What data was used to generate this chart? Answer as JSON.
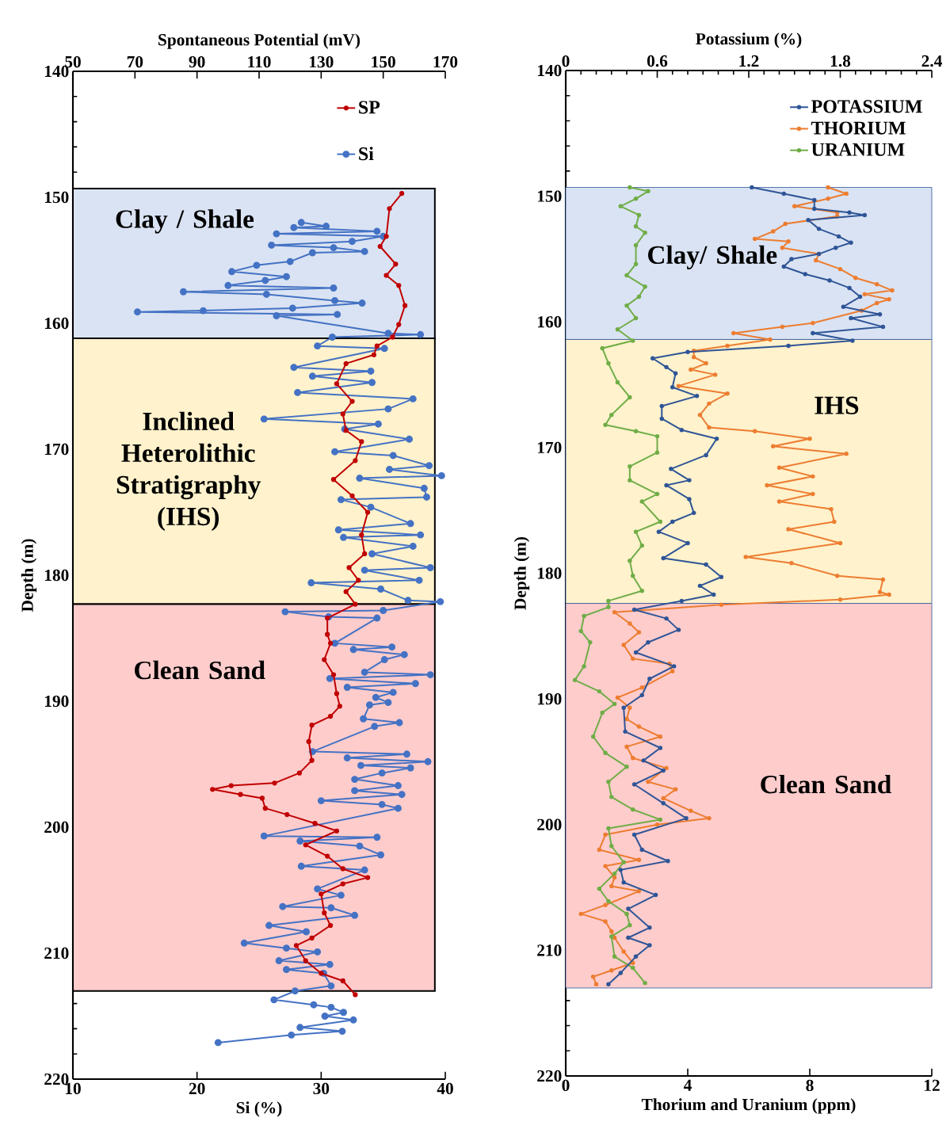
{
  "chart_data": [
    {
      "type": "line",
      "orientation": "horizontal",
      "xlabel": "Si (%)",
      "x2label": "Spontaneous Potential (mV)",
      "ylabel": "Depth (m)",
      "xlim": [
        10,
        40
      ],
      "xticks": [
        10,
        20,
        30,
        40
      ],
      "x2lim": [
        50,
        170
      ],
      "x2ticks": [
        50,
        70,
        90,
        110,
        130,
        150,
        170
      ],
      "ylim": [
        220,
        140
      ],
      "yticks": [
        140,
        150,
        160,
        170,
        180,
        190,
        200,
        210,
        220
      ],
      "marker": "circle",
      "legend": "top right",
      "bands": [
        {
          "axis": "y",
          "from": 149.3,
          "to": 161.2,
          "label": "Clay / Shale",
          "color": "#dae3f3"
        },
        {
          "axis": "y",
          "from": 161.2,
          "to": 182.3,
          "label": "Inclined Heterolithic Stratigraphy (IHS)",
          "color": "#fff2cc"
        },
        {
          "axis": "y",
          "from": 182.3,
          "to": 213.0,
          "label": "Clean Sand",
          "color": "#ffcccc"
        }
      ],
      "series": [
        {
          "name": "SP",
          "color": "#c00000",
          "axis": "x2",
          "x": [
            149.7,
            150.9,
            153.1,
            153.9,
            155.3,
            156.2,
            157.0,
            158.6,
            160.1,
            161.1,
            161.8,
            162.5,
            163.2,
            164.8,
            166.2,
            167.2,
            168.5,
            169.4,
            170.9,
            172.4,
            173.7,
            175.0,
            176.8,
            178.3,
            179.4,
            180.4,
            181.3,
            182.3,
            183.4,
            184.7,
            185.4,
            186.7,
            187.9,
            189.4,
            190.4,
            191.2,
            191.9,
            193.2,
            194.7,
            195.7,
            196.5,
            196.7,
            197.0,
            197.4,
            197.7,
            198.5,
            199.0,
            199.7,
            200.3,
            201.4,
            202.3,
            203.3,
            204.0,
            204.5,
            205.3,
            206.8,
            207.8,
            208.8,
            209.4,
            210.6,
            211.6,
            212.2,
            213.3
          ],
          "values": [
            156,
            152,
            151,
            149,
            154,
            151,
            155,
            157,
            155,
            153,
            148,
            147,
            138,
            135,
            140,
            137,
            138,
            143,
            141,
            134,
            140,
            145,
            143,
            144,
            139,
            142,
            138,
            141,
            132,
            132,
            133,
            131,
            134,
            135,
            136,
            133,
            127,
            126,
            127,
            123,
            115,
            101,
            95,
            104,
            111,
            112,
            119,
            128,
            135,
            125,
            132,
            137,
            145,
            137,
            130,
            131,
            133,
            127,
            122,
            125,
            130,
            137,
            141
          ]
        },
        {
          "name": "Si",
          "color": "#4472c4",
          "x": [
            152.0,
            152.3,
            152.4,
            152.7,
            152.9,
            153.1,
            153.5,
            153.8,
            154.0,
            154.3,
            154.4,
            155.1,
            155.4,
            155.9,
            156.3,
            156.6,
            157.0,
            157.2,
            157.5,
            157.7,
            158.2,
            158.4,
            158.8,
            159.0,
            159.1,
            159.3,
            159.4,
            160.8,
            160.9,
            161.1,
            161.8,
            162.0,
            163.5,
            163.8,
            164.2,
            164.7,
            165.5,
            166.0,
            166.8,
            167.6,
            168.0,
            168.4,
            169.2,
            170.2,
            170.5,
            171.3,
            171.6,
            172.1,
            172.3,
            173.1,
            173.8,
            174.0,
            174.6,
            175.9,
            176.4,
            176.8,
            177.0,
            177.7,
            178.3,
            179.4,
            179.6,
            180.4,
            180.6,
            181.1,
            182.0,
            182.1,
            182.8,
            182.9,
            183.3,
            183.4,
            185.4,
            185.7,
            185.9,
            186.3,
            186.7,
            187.7,
            187.9,
            188.2,
            188.6,
            188.9,
            189.3,
            189.7,
            190.1,
            190.3,
            191.4,
            191.7,
            192.0,
            194.0,
            194.2,
            194.5,
            194.8,
            195.1,
            195.3,
            195.7,
            196.2,
            196.7,
            197.1,
            197.4,
            197.9,
            198.2,
            198.5,
            200.7,
            200.8,
            201.1,
            201.5,
            202.2,
            203.1,
            203.4,
            204.9,
            205.4,
            206.3,
            206.4,
            207.0,
            207.8,
            208.3,
            209.2,
            209.6,
            209.9,
            210.6,
            210.9,
            211.3,
            211.6,
            212.6,
            213.0,
            213.7,
            214.1,
            214.3,
            214.7,
            215.0,
            215.3,
            215.9,
            216.2,
            216.5,
            217.1
          ],
          "values": [
            28.4,
            30.4,
            27.8,
            34.5,
            26.4,
            35.0,
            32.5,
            26.0,
            31.0,
            33.5,
            29.3,
            27.5,
            24.8,
            22.8,
            27.2,
            25.5,
            22.5,
            31.0,
            18.9,
            25.6,
            31.1,
            33.3,
            27.7,
            20.5,
            15.2,
            31.3,
            26.4,
            35.4,
            38.0,
            30.9,
            29.7,
            35.1,
            27.8,
            34.0,
            29.3,
            34.1,
            28.1,
            37.4,
            35.4,
            25.4,
            34.6,
            31.9,
            37.1,
            31.1,
            35.8,
            38.7,
            35.5,
            39.7,
            33.1,
            38.3,
            38.5,
            31.6,
            34.0,
            37.2,
            31.4,
            38.0,
            31.8,
            37.4,
            34.1,
            38.8,
            33.5,
            37.9,
            29.2,
            34.8,
            37.0,
            39.6,
            35.0,
            27.1,
            30.6,
            34.5,
            31.1,
            35.7,
            32.6,
            36.7,
            35.1,
            33.5,
            38.8,
            30.7,
            37.6,
            32.1,
            35.8,
            34.4,
            35.4,
            33.9,
            33.4,
            36.3,
            34.3,
            29.3,
            36.9,
            32.1,
            38.6,
            33.2,
            37.2,
            34.9,
            32.7,
            36.2,
            32.7,
            36.5,
            30.0,
            34.9,
            36.2,
            25.4,
            34.5,
            28.3,
            33.1,
            34.8,
            28.4,
            33.5,
            29.7,
            31.6,
            26.9,
            30.8,
            32.7,
            25.8,
            28.8,
            23.8,
            27.2,
            29.7,
            26.6,
            30.7,
            27.2,
            30.2,
            30.8,
            27.9,
            26.2,
            29.4,
            30.8,
            31.8,
            30.3,
            32.6,
            28.3,
            31.7,
            27.6,
            21.7
          ]
        }
      ]
    },
    {
      "type": "line",
      "orientation": "horizontal",
      "xlabel": "Thorium and Uranium (ppm)",
      "x2label": "Potassium (%)",
      "ylabel": "Depth (m)",
      "xlim": [
        0,
        12
      ],
      "xticks": [
        0,
        4,
        8,
        12
      ],
      "x2lim": [
        0,
        2.4
      ],
      "x2ticks": [
        0,
        0.6,
        1.2,
        1.8,
        2.4
      ],
      "ylim": [
        220,
        140
      ],
      "yticks": [
        140,
        150,
        160,
        170,
        180,
        190,
        200,
        210,
        220
      ],
      "marker": "circle",
      "legend": "top right",
      "bands": [
        {
          "axis": "y",
          "from": 149.3,
          "to": 161.4,
          "label": "Clay/ Shale",
          "color": "#dae3f3"
        },
        {
          "axis": "y",
          "from": 161.4,
          "to": 182.4,
          "label": "IHS",
          "color": "#fff2cc"
        },
        {
          "axis": "y",
          "from": 182.4,
          "to": 213.0,
          "label": "Clean Sand",
          "color": "#ffcccc"
        }
      ],
      "series": [
        {
          "name": "POTASSIUM",
          "color": "#2f5597",
          "axis": "x2",
          "x": [
            149.3,
            149.8,
            150.3,
            151.0,
            151.3,
            151.5,
            151.9,
            152.6,
            153.2,
            153.7,
            154.1,
            154.6,
            155.0,
            155.6,
            156.2,
            156.7,
            157.3,
            158.0,
            158.8,
            159.4,
            159.7,
            160.4,
            160.9,
            161.5,
            161.9,
            162.4,
            162.9,
            163.6,
            164.1,
            165.2,
            165.9,
            166.7,
            167.7,
            168.6,
            169.3,
            170.6,
            171.7,
            172.6,
            173.0,
            174.1,
            175.2,
            175.9,
            176.7,
            177.6,
            178.8,
            179.3,
            180.3,
            181.0,
            181.7,
            182.2,
            182.9,
            183.6,
            184.5,
            185.5,
            186.3,
            187.4,
            188.4,
            189.7,
            190.7,
            192.6,
            193.9,
            194.9,
            195.7,
            196.8,
            198.3,
            199.5,
            200.8,
            202.0,
            202.9,
            203.6,
            204.6,
            205.6,
            206.7,
            208.2,
            209.0,
            209.6,
            210.5,
            211.8,
            212.7
          ],
          "values": [
            1.22,
            1.43,
            1.63,
            1.63,
            1.86,
            1.96,
            1.59,
            1.66,
            1.79,
            1.87,
            1.77,
            1.66,
            1.48,
            1.43,
            1.57,
            1.73,
            1.86,
            1.93,
            1.82,
            2.06,
            1.87,
            2.08,
            1.62,
            1.88,
            1.46,
            0.8,
            0.57,
            0.66,
            0.72,
            0.7,
            0.86,
            0.63,
            0.63,
            0.76,
            0.99,
            0.92,
            0.69,
            0.81,
            0.66,
            0.81,
            0.84,
            0.7,
            0.61,
            0.8,
            0.64,
            0.92,
            1.02,
            0.88,
            0.97,
            0.76,
            0.45,
            0.66,
            0.74,
            0.54,
            0.46,
            0.71,
            0.55,
            0.5,
            0.38,
            0.39,
            0.62,
            0.51,
            0.64,
            0.45,
            0.64,
            0.79,
            0.45,
            0.5,
            0.67,
            0.36,
            0.38,
            0.59,
            0.41,
            0.55,
            0.41,
            0.55,
            0.46,
            0.36,
            0.28
          ]
        },
        {
          "name": "THORIUM",
          "color": "#ed7d31",
          "x": [
            149.3,
            149.8,
            150.2,
            150.8,
            151.3,
            151.6,
            152.2,
            152.8,
            153.4,
            153.6,
            154.1,
            154.6,
            155.1,
            155.8,
            156.5,
            157.0,
            157.5,
            157.8,
            158.2,
            158.5,
            159.1,
            160.1,
            160.4,
            160.9,
            161.4,
            161.9,
            162.3,
            162.8,
            163.3,
            163.8,
            164.2,
            165.1,
            165.7,
            166.5,
            167.4,
            168.4,
            168.7,
            169.3,
            169.9,
            170.5,
            171.6,
            172.3,
            173.0,
            173.7,
            174.3,
            174.9,
            175.9,
            176.5,
            177.6,
            178.7,
            179.2,
            180.2,
            180.5,
            181.5,
            181.7,
            182.1,
            182.5,
            183.1,
            184.0,
            184.7,
            185.7,
            186.8,
            187.2,
            187.8,
            189.1,
            189.9,
            190.7,
            191.6,
            192.2,
            193.0,
            193.8,
            194.7,
            195.5,
            196.6,
            197.2,
            197.9,
            198.9,
            199.5,
            200.0,
            200.8,
            202.0,
            202.8,
            203.3,
            204.2,
            204.9,
            205.3,
            206.4,
            207.1,
            207.7,
            208.5,
            209.0,
            210.1,
            211.0,
            211.6,
            212.1,
            212.7
          ],
          "values": [
            8.6,
            9.2,
            8.6,
            7.5,
            8.9,
            8.9,
            7.2,
            6.8,
            6.2,
            7.3,
            7.1,
            8.3,
            8.2,
            9.0,
            9.5,
            10.2,
            10.7,
            9.8,
            10.6,
            10.2,
            9.7,
            8.1,
            7.1,
            5.5,
            6.7,
            5.3,
            4.2,
            4.2,
            4.6,
            4.1,
            4.9,
            3.7,
            5.3,
            4.7,
            4.4,
            4.7,
            6.2,
            8.0,
            6.8,
            9.2,
            7.0,
            8.1,
            6.6,
            8.1,
            7.0,
            8.7,
            8.8,
            7.3,
            9.0,
            5.9,
            7.4,
            8.9,
            10.4,
            10.3,
            10.6,
            9.0,
            5.1,
            1.6,
            2.1,
            2.4,
            1.9,
            2.2,
            3.4,
            3.5,
            2.5,
            1.7,
            2.1,
            2.0,
            2.4,
            3.1,
            2.0,
            2.2,
            3.3,
            2.7,
            3.6,
            3.2,
            4.1,
            4.7,
            3.0,
            1.3,
            1.1,
            2.4,
            1.3,
            1.6,
            1.5,
            2.4,
            1.3,
            0.5,
            1.3,
            1.5,
            1.6,
            1.9,
            2.2,
            1.5,
            0.9,
            1.0
          ]
        },
        {
          "name": "URANIUM",
          "color": "#70ad47",
          "x": [
            149.3,
            149.6,
            150.2,
            150.8,
            151.5,
            152.4,
            152.9,
            153.9,
            155.4,
            156.3,
            157.2,
            158.0,
            158.7,
            159.7,
            160.6,
            161.5,
            162.1,
            163.3,
            164.8,
            166.0,
            167.4,
            168.2,
            168.7,
            169.1,
            170.4,
            171.5,
            172.6,
            173.7,
            174.3,
            175.9,
            176.7,
            177.8,
            179.0,
            180.2,
            181.4,
            182.2,
            182.7,
            183.4,
            184.6,
            185.5,
            187.4,
            188.5,
            189.4,
            190.4,
            191.1,
            193.0,
            194.3,
            195.4,
            196.6,
            197.8,
            198.8,
            199.6,
            200.3,
            201.7,
            203.0,
            203.9,
            205.1,
            206.1,
            207.1,
            208.0,
            208.9,
            210.5,
            211.4,
            212.6
          ],
          "values": [
            2.1,
            2.7,
            2.3,
            1.8,
            2.4,
            2.3,
            2.6,
            2.3,
            2.3,
            2.0,
            2.6,
            2.4,
            2.0,
            2.3,
            1.7,
            2.2,
            1.2,
            1.4,
            1.7,
            2.1,
            1.5,
            1.3,
            2.3,
            3.0,
            3.0,
            2.1,
            2.1,
            3.0,
            2.5,
            3.1,
            2.3,
            2.5,
            2.1,
            2.2,
            2.5,
            1.4,
            1.4,
            0.6,
            0.5,
            0.8,
            0.6,
            0.3,
            1.1,
            1.6,
            1.2,
            0.9,
            1.3,
            2.0,
            1.4,
            1.5,
            2.2,
            3.1,
            1.4,
            1.5,
            1.9,
            1.6,
            1.1,
            1.4,
            2.0,
            2.1,
            1.5,
            1.6,
            2.2,
            2.6
          ]
        }
      ]
    }
  ]
}
